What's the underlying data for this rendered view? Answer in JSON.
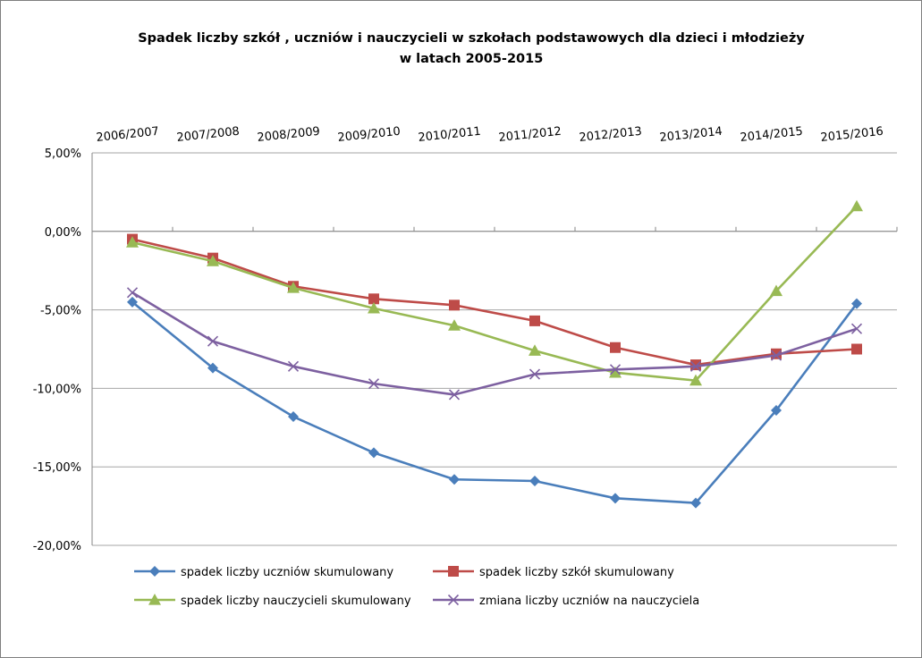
{
  "chart_data": {
    "type": "line",
    "title_line1": "Spadek liczby szkół , uczniów  i nauczycieli w  szkołach podstawowych dla dzieci i młodzieży",
    "title_line2": "w latach 2005-2015",
    "categories": [
      "2006/2007",
      "2007/2008",
      "2008/2009",
      "2009/2010",
      "2010/2011",
      "2011/2012",
      "2012/2013",
      "2013/2014",
      "2014/2015",
      "2015/2016"
    ],
    "ylim": [
      -20,
      5
    ],
    "y_ticks": [
      5,
      0,
      -5,
      -10,
      -15,
      -20
    ],
    "y_tick_labels": [
      "5,00%",
      "0,00%",
      "-5,00%",
      "-10,00%",
      "-15,00%",
      "-20,00%"
    ],
    "grid": true,
    "legend_position": "bottom",
    "series": [
      {
        "name": "spadek liczby uczniów skumulowany",
        "color": "#4a7ebb",
        "marker": "diamond",
        "values": [
          -4.5,
          -8.7,
          -11.8,
          -14.1,
          -15.8,
          -15.9,
          -17.0,
          -17.3,
          -11.4,
          -4.6
        ]
      },
      {
        "name": "spadek liczby szkół skumulowany",
        "color": "#be4b48",
        "marker": "square",
        "values": [
          -0.5,
          -1.7,
          -3.5,
          -4.3,
          -4.7,
          -5.7,
          -7.4,
          -8.5,
          -7.8,
          -7.5
        ]
      },
      {
        "name": "spadek liczby nauczycieli skumulowany",
        "color": "#98b954",
        "marker": "triangle",
        "values": [
          -0.7,
          -1.9,
          -3.6,
          -4.9,
          -6.0,
          -7.6,
          -9.0,
          -9.5,
          -3.8,
          1.6
        ]
      },
      {
        "name": "zmiana liczby uczniów na nauczyciela",
        "color": "#7d60a0",
        "marker": "x",
        "values": [
          -3.9,
          -7.0,
          -8.6,
          -9.7,
          -10.4,
          -9.1,
          -8.8,
          -8.6,
          -7.9,
          -6.2
        ]
      }
    ]
  }
}
